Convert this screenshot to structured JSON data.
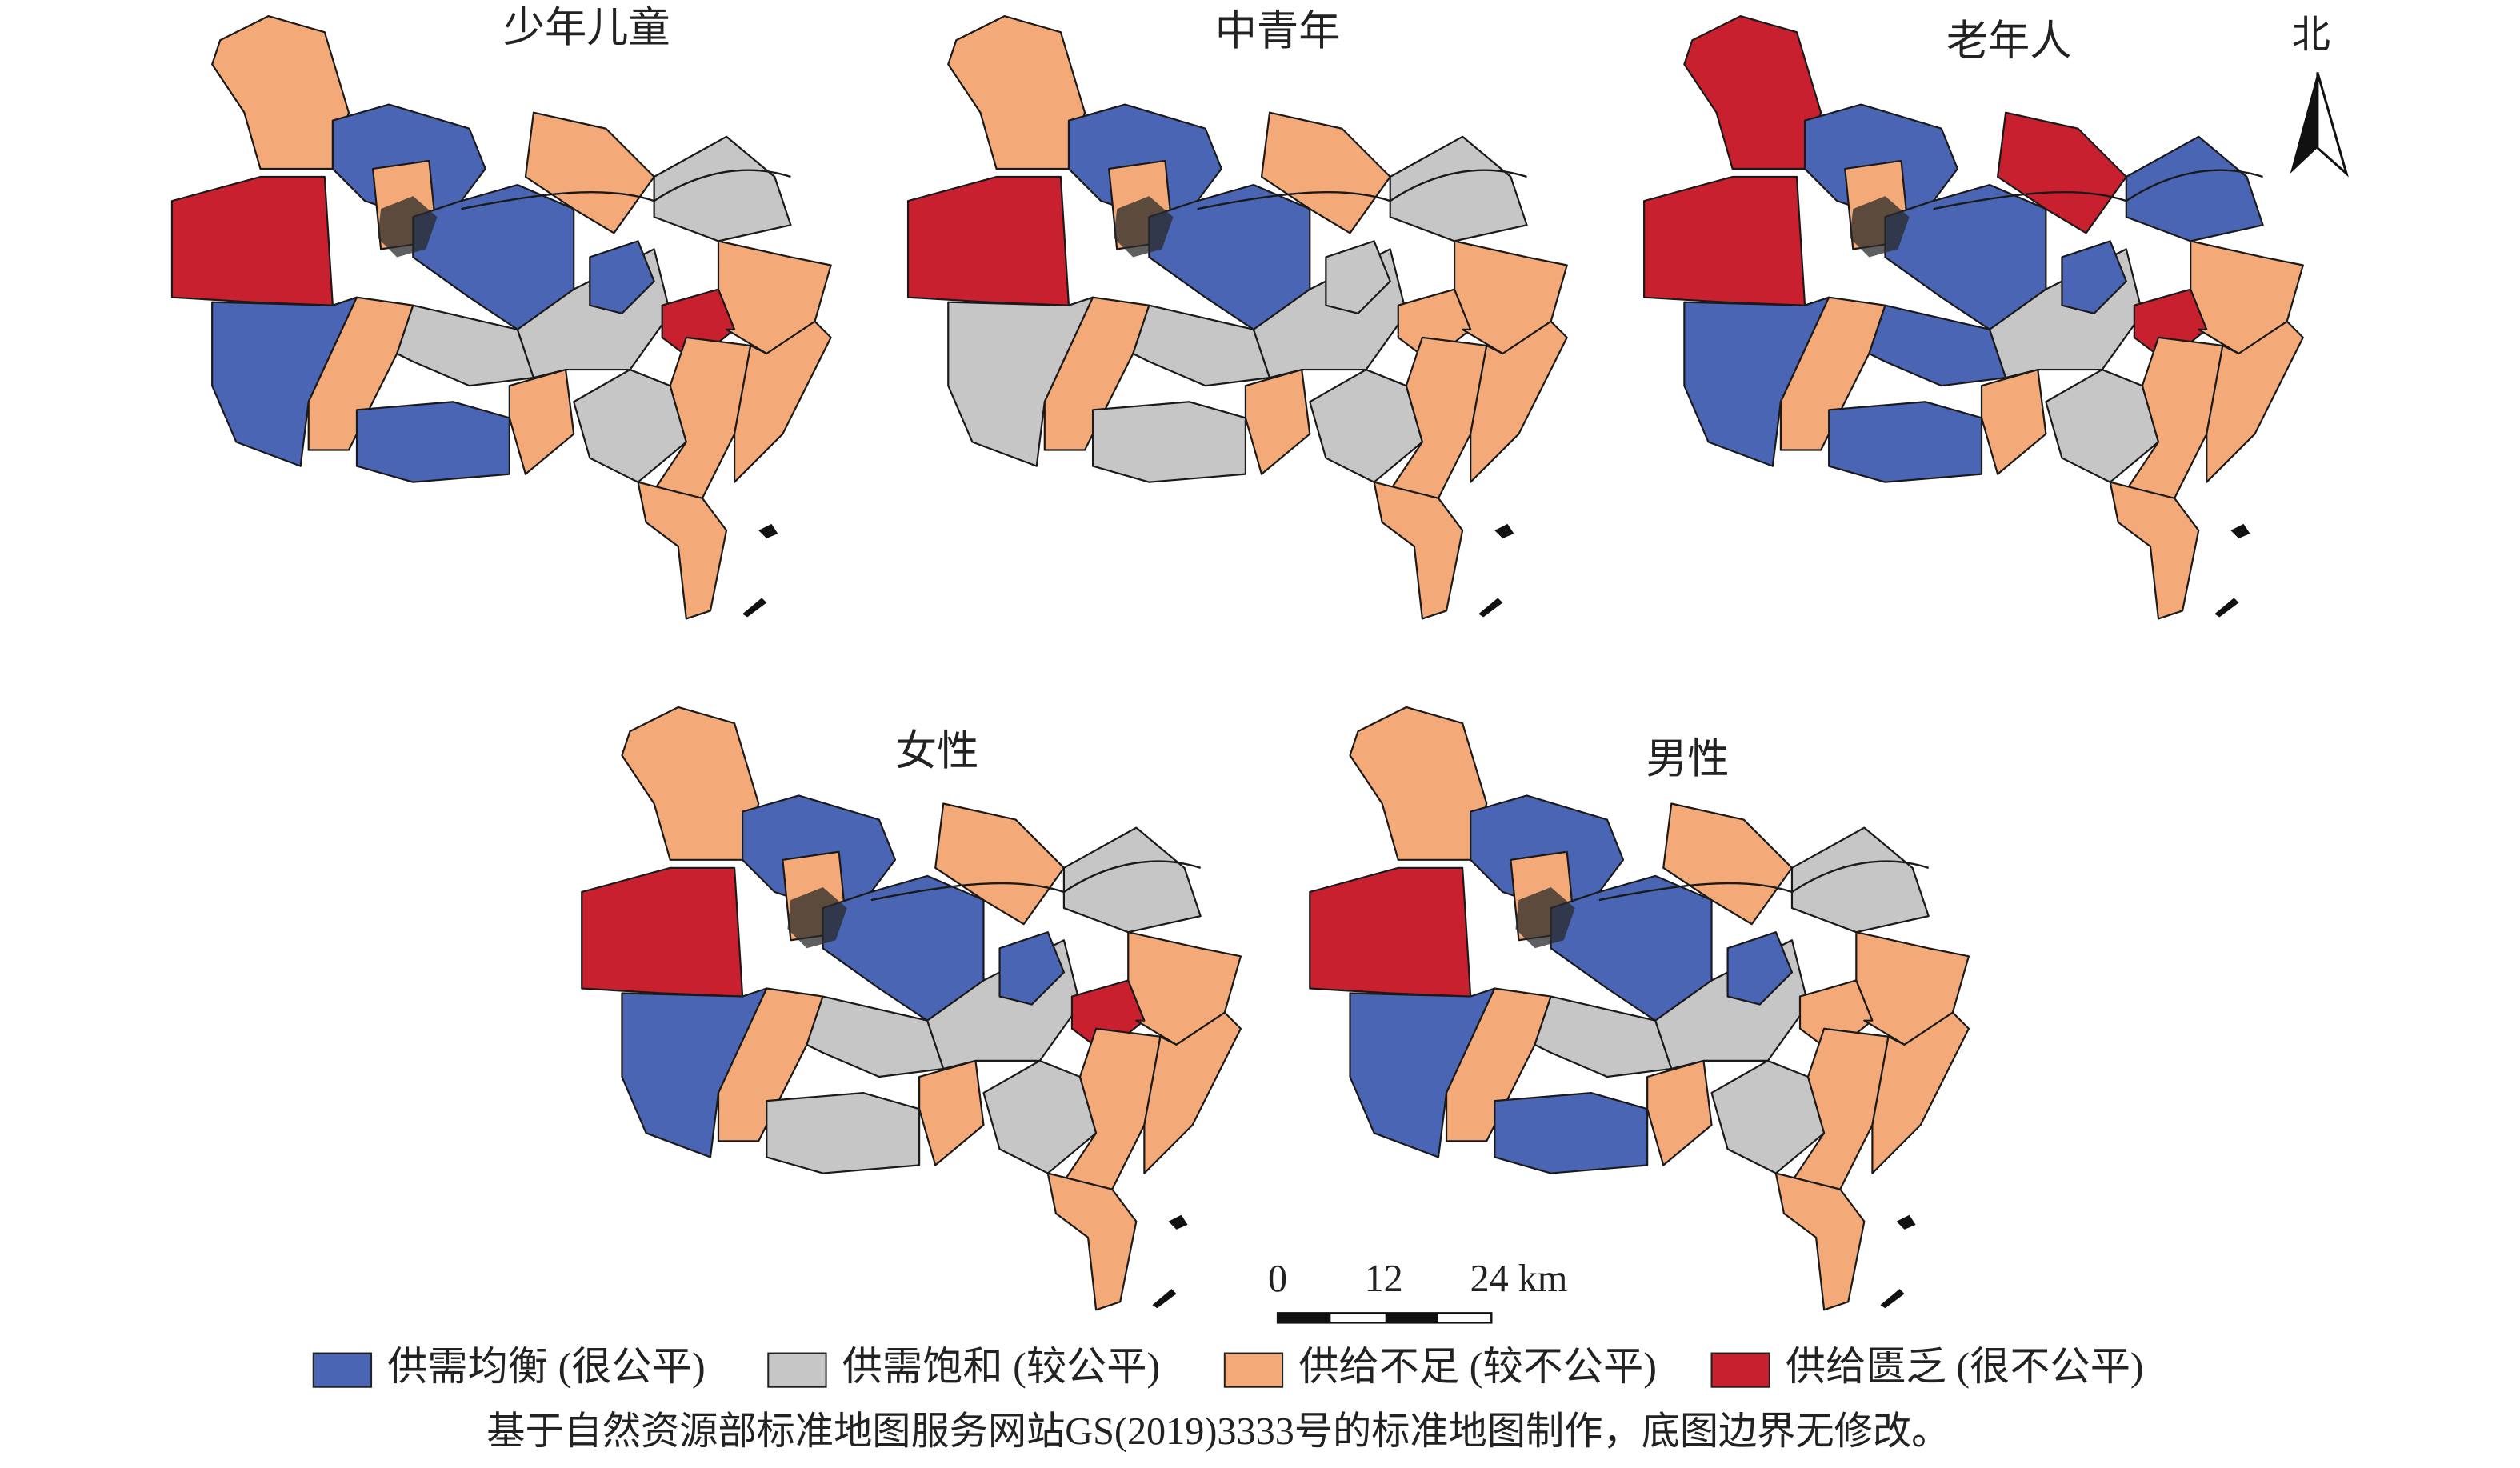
{
  "maps": [
    {
      "title": "少年儿童"
    },
    {
      "title": "中青年"
    },
    {
      "title": "老年人"
    },
    {
      "title": "女性"
    },
    {
      "title": "男性"
    }
  ],
  "north_label": "北",
  "scale_bar": {
    "labels": [
      "0",
      "12",
      "24 km"
    ]
  },
  "legend": {
    "items": [
      {
        "label": "供需均衡 (很公平)",
        "color": "#4a65b3"
      },
      {
        "label": "供需饱和 (较公平)",
        "color": "#c6c6c6"
      },
      {
        "label": "供给不足 (较不公平)",
        "color": "#f4aa78"
      },
      {
        "label": "供给匮乏 (很不公平)",
        "color": "#c8202f"
      }
    ]
  },
  "caption": "基于自然资源部标准地图服务网站GS(2019)3333号的标准地图制作，底图边界无修改。"
}
